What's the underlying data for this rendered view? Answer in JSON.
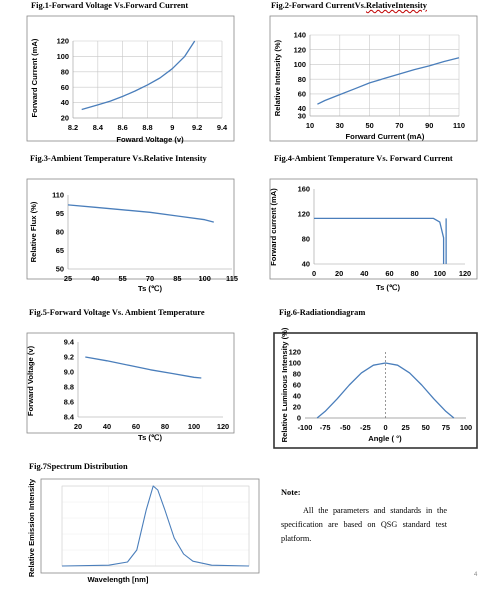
{
  "captions": {
    "fig1": "Fig.1-Forward Voltage Vs.Forward Current",
    "fig2_main": "Fig.2-Forward CurrentVs.",
    "fig2_tail": "RelativeIntensity",
    "fig3": "Fig.3-Ambient Temperature Vs.Relative Intensity",
    "fig4": "Fig.4-Ambient Temperature Vs. Forward Current",
    "fig5": "Fig.5-Forward Voltage Vs. Ambient Temperature",
    "fig6": "Fig.6-Radiationdiagram",
    "fig7": "Fig.7Spectrum Distribution"
  },
  "note": {
    "title": "Note:",
    "body": "All the parameters and standards in the specification are based on QSG standard test platform."
  },
  "page_number": "4",
  "colors": {
    "line": "#4a7ebb",
    "frame": "#888888",
    "wavy": "#c00000"
  },
  "chart_data": [
    {
      "id": "fig1",
      "type": "line",
      "xlabel": "Foward Voltage  (v)",
      "ylabel": "Forward Current (mA)",
      "xlim": [
        8.2,
        9.4
      ],
      "ylim": [
        20,
        120
      ],
      "xticks": [
        "8.2",
        "8.4",
        "8.6",
        "8.8",
        "9",
        "9.2",
        "9.4"
      ],
      "yticks": [
        "20",
        "40",
        "60",
        "80",
        "100",
        "120"
      ],
      "series": [
        {
          "x": [
            8.27,
            8.4,
            8.5,
            8.6,
            8.7,
            8.8,
            8.9,
            9.0,
            9.1,
            9.18
          ],
          "y": [
            31,
            37,
            42,
            48,
            55,
            63,
            72,
            84,
            100,
            120
          ]
        }
      ]
    },
    {
      "id": "fig2",
      "type": "line",
      "xlabel": "Forward Current  (mA)",
      "ylabel": "Relative Intensity (%)",
      "xlim": [
        10,
        110
      ],
      "ylim": [
        30,
        140
      ],
      "xticks": [
        "10",
        "30",
        "50",
        "70",
        "90",
        "110"
      ],
      "yticks": [
        "30",
        "40",
        "60",
        "80",
        "100",
        "120",
        "140"
      ],
      "series": [
        {
          "x": [
            15,
            20,
            30,
            40,
            50,
            60,
            70,
            80,
            90,
            100,
            110
          ],
          "y": [
            46,
            51,
            59,
            67,
            75,
            81,
            87,
            93,
            98,
            104,
            109
          ]
        }
      ]
    },
    {
      "id": "fig3",
      "type": "line",
      "xlabel": "Ts  (℃)",
      "ylabel": "Relative Flux (%)",
      "xlim": [
        25,
        115
      ],
      "ylim": [
        50,
        110
      ],
      "xticks": [
        "25",
        "40",
        "55",
        "70",
        "85",
        "100",
        "115"
      ],
      "yticks": [
        "50",
        "65",
        "80",
        "95",
        "110"
      ],
      "series": [
        {
          "x": [
            25,
            40,
            55,
            70,
            85,
            100,
            105
          ],
          "y": [
            102,
            100,
            98,
            96,
            93,
            90,
            88
          ]
        }
      ]
    },
    {
      "id": "fig4",
      "type": "line",
      "xlabel": "Ts  (℃)",
      "ylabel": "Forward current (mA)",
      "xlim": [
        0,
        120
      ],
      "ylim": [
        40,
        160
      ],
      "xticks": [
        "0",
        "20",
        "40",
        "60",
        "80",
        "100",
        "120"
      ],
      "yticks": [
        "40",
        "80",
        "120",
        "160"
      ],
      "series": [
        {
          "x": [
            0,
            95,
            100,
            103,
            103
          ],
          "y": [
            113,
            113,
            107,
            82,
            40
          ]
        }
      ],
      "guide_x": 105
    },
    {
      "id": "fig5",
      "type": "line",
      "xlabel": "Ts  (℃)",
      "ylabel": "Forward Voltage (v)",
      "xlim": [
        20,
        120
      ],
      "ylim": [
        8.4,
        9.4
      ],
      "xticks": [
        "20",
        "40",
        "60",
        "80",
        "100",
        "120"
      ],
      "yticks": [
        "8.4",
        "8.6",
        "8.8",
        "9.0",
        "9.2",
        "9.4"
      ],
      "series": [
        {
          "x": [
            25,
            40,
            55,
            70,
            85,
            100,
            105
          ],
          "y": [
            9.2,
            9.15,
            9.09,
            9.03,
            8.98,
            8.93,
            8.92
          ]
        }
      ]
    },
    {
      "id": "fig6",
      "type": "line",
      "xlabel": "Angle ( °)",
      "ylabel": "Relative Luminous Intensity (%)",
      "xlim": [
        -100,
        100
      ],
      "ylim": [
        0,
        120
      ],
      "xticks": [
        "-100",
        "-75",
        "-50",
        "-25",
        "0",
        "25",
        "50",
        "75",
        "100"
      ],
      "yticks": [
        "0",
        "20",
        "40",
        "60",
        "80",
        "100",
        "120"
      ],
      "series": [
        {
          "x": [
            -85,
            -75,
            -60,
            -45,
            -30,
            -15,
            0,
            15,
            30,
            45,
            60,
            75,
            85
          ],
          "y": [
            0,
            12,
            35,
            60,
            82,
            96,
            100,
            96,
            82,
            60,
            35,
            12,
            0
          ]
        }
      ]
    },
    {
      "id": "fig7",
      "type": "line",
      "xlabel": "Wavelength [nm]",
      "ylabel": "Relative Emission Intensity",
      "xlim": [
        380,
        780
      ],
      "ylim": [
        0,
        1
      ],
      "series": [
        {
          "x": [
            380,
            480,
            520,
            540,
            560,
            575,
            585,
            600,
            620,
            640,
            660,
            700,
            780
          ],
          "y": [
            0,
            0.01,
            0.05,
            0.2,
            0.7,
            1.0,
            0.95,
            0.7,
            0.35,
            0.15,
            0.06,
            0.01,
            0
          ]
        }
      ]
    }
  ]
}
